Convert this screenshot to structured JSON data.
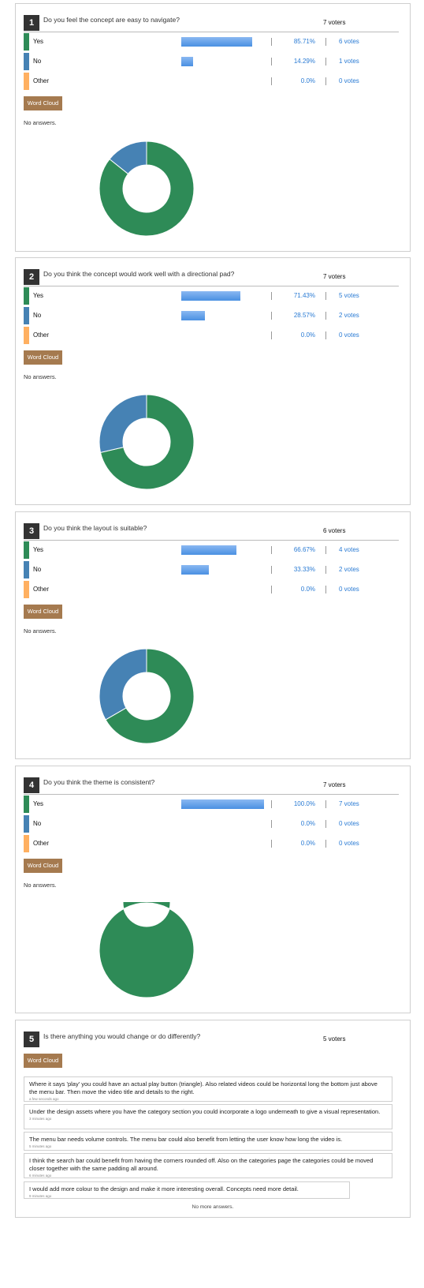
{
  "colors": {
    "yes": "#2e8b57",
    "no": "#4682b4",
    "other": "#ffb061",
    "bar": "#4a90e2",
    "word_cloud": "#a57a4f"
  },
  "word_cloud_label": "Word Cloud",
  "no_answers_label": "No answers.",
  "questions": [
    {
      "number": "1",
      "title": "Do you feel the concept are easy to navigate?",
      "voters": "7 voters",
      "options": [
        {
          "label": "Yes",
          "percent": "85.71%",
          "votes": "6 votes",
          "fraction": 0.8571
        },
        {
          "label": "No",
          "percent": "14.29%",
          "votes": "1 votes",
          "fraction": 0.1429
        },
        {
          "label": "Other",
          "percent": "0.0%",
          "votes": "0 votes",
          "fraction": 0
        }
      ]
    },
    {
      "number": "2",
      "title": "Do you think the concept would work well with a directional pad?",
      "voters": "7 voters",
      "options": [
        {
          "label": "Yes",
          "percent": "71.43%",
          "votes": "5 votes",
          "fraction": 0.7143
        },
        {
          "label": "No",
          "percent": "28.57%",
          "votes": "2 votes",
          "fraction": 0.2857
        },
        {
          "label": "Other",
          "percent": "0.0%",
          "votes": "0 votes",
          "fraction": 0
        }
      ]
    },
    {
      "number": "3",
      "title": "Do you think the layout is suitable?",
      "voters": "6 voters",
      "options": [
        {
          "label": "Yes",
          "percent": "66.67%",
          "votes": "4 votes",
          "fraction": 0.6667
        },
        {
          "label": "No",
          "percent": "33.33%",
          "votes": "2 votes",
          "fraction": 0.3333
        },
        {
          "label": "Other",
          "percent": "0.0%",
          "votes": "0 votes",
          "fraction": 0
        }
      ]
    },
    {
      "number": "4",
      "title": "Do you think the theme is consistent?",
      "voters": "7 voters",
      "options": [
        {
          "label": "Yes",
          "percent": "100.0%",
          "votes": "7 votes",
          "fraction": 1.0
        },
        {
          "label": "No",
          "percent": "0.0%",
          "votes": "0 votes",
          "fraction": 0
        },
        {
          "label": "Other",
          "percent": "0.0%",
          "votes": "0 votes",
          "fraction": 0
        }
      ]
    }
  ],
  "open_question": {
    "number": "5",
    "title": "Is there anything you would change or do differently?",
    "voters": "5 voters",
    "answers": [
      {
        "text": "Where it says 'play' you could have an actual play button (triangle). Also related videos could be horizontal long the bottom just above the menu bar. Then move the video title and details to the right.",
        "time": "a few seconds ago"
      },
      {
        "text": "Under the design assets where you have the category section you could incorporate a logo underneath to give a visual representation.",
        "time": "3 minutes ago"
      },
      {
        "text": "The menu bar needs volume controls. The menu bar could also benefit from letting the user know how long the video is.",
        "time": "5 minutes ago"
      },
      {
        "text": "I think the search bar could benefit from having the corners rounded off. Also on the categories page the categories could be moved closer together with the same padding all around.",
        "time": "6 minutes ago"
      },
      {
        "text": "I would add more colour to the design and make it more interesting overall. Concepts need more detail.",
        "time": "9 minutes ago"
      }
    ],
    "no_more_answers": "No more answers."
  }
}
